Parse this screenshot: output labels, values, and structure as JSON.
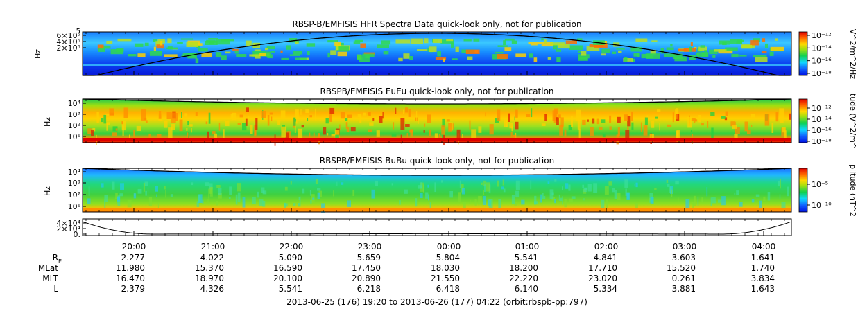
{
  "chart_data": [
    {
      "type": "heatmap",
      "title": "RBSP-B/EMFISIS  HFR Spectra Data quick-look only, not for publication",
      "ylabel": "Hz",
      "y_ticks": [
        "6×10⁵",
        "4×10⁵",
        "2×10⁵"
      ],
      "y_extra_tick": "5",
      "colorbar_label": "V^2/m^2/Hz",
      "colorbar_ticks": [
        "10⁻¹²",
        "10⁻¹⁴",
        "10⁻¹⁶",
        "10⁻¹⁸"
      ],
      "colorbar_log_range": [
        -18,
        -12
      ],
      "colorscale": [
        "#0a10d8",
        "#1c6cff",
        "#1fd0ff",
        "#17d14a",
        "#b8e21a",
        "#ffd000",
        "#ff6a00",
        "#e00000"
      ]
    },
    {
      "type": "heatmap",
      "title": "RBSPB/EMFISIS  EuEu quick-look only, not for publication",
      "ylabel": "Hz",
      "y_ticks": [
        "10⁴",
        "10³",
        "10²",
        "10¹"
      ],
      "colorbar_label": "tude (V^2/m^",
      "colorbar_ticks": [
        "10⁻¹²",
        "10⁻¹⁴",
        "10⁻¹⁶",
        "10⁻¹⁸"
      ],
      "colorbar_log_range": [
        -18,
        -12
      ]
    },
    {
      "type": "heatmap",
      "title": "RBSPB/EMFISIS  BuBu quick-look only, not for publication",
      "ylabel": "Hz",
      "y_ticks": [
        "10⁴",
        "10³",
        "10²",
        "10¹"
      ],
      "colorbar_label": "plitude (nT^2",
      "colorbar_ticks": [
        "10⁻⁵",
        "10⁻¹⁰"
      ],
      "colorbar_log_range": [
        -12,
        -3
      ]
    },
    {
      "type": "line",
      "y_ticks": [
        "4×10⁴",
        "2×10⁴",
        "0."
      ],
      "ylim": [
        0,
        50000
      ]
    }
  ],
  "x_axis": {
    "tick_labels": [
      "20:00",
      "21:00",
      "22:00",
      "23:00",
      "00:00",
      "01:00",
      "02:00",
      "03:00",
      "04:00"
    ],
    "rows": [
      {
        "label": "R",
        "label_sub": "E",
        "values": [
          "2.277",
          "4.022",
          "5.090",
          "5.659",
          "5.804",
          "5.541",
          "4.841",
          "3.603",
          "1.641"
        ]
      },
      {
        "label": "MLat",
        "values": [
          "11.980",
          "15.370",
          "16.590",
          "17.450",
          "18.030",
          "18.200",
          "17.710",
          "15.520",
          "1.740"
        ]
      },
      {
        "label": "MLT",
        "values": [
          "16.470",
          "18.970",
          "20.100",
          "20.890",
          "21.550",
          "22.220",
          "23.020",
          "0.261",
          "3.834"
        ]
      },
      {
        "label": "L",
        "values": [
          "2.379",
          "4.326",
          "5.541",
          "6.218",
          "6.418",
          "6.140",
          "5.334",
          "3.881",
          "1.643"
        ]
      }
    ],
    "footer": "2013-06-25 (176) 19:20 to 2013-06-26 (177) 04:22 (orbit:rbspb-pp:797)"
  }
}
